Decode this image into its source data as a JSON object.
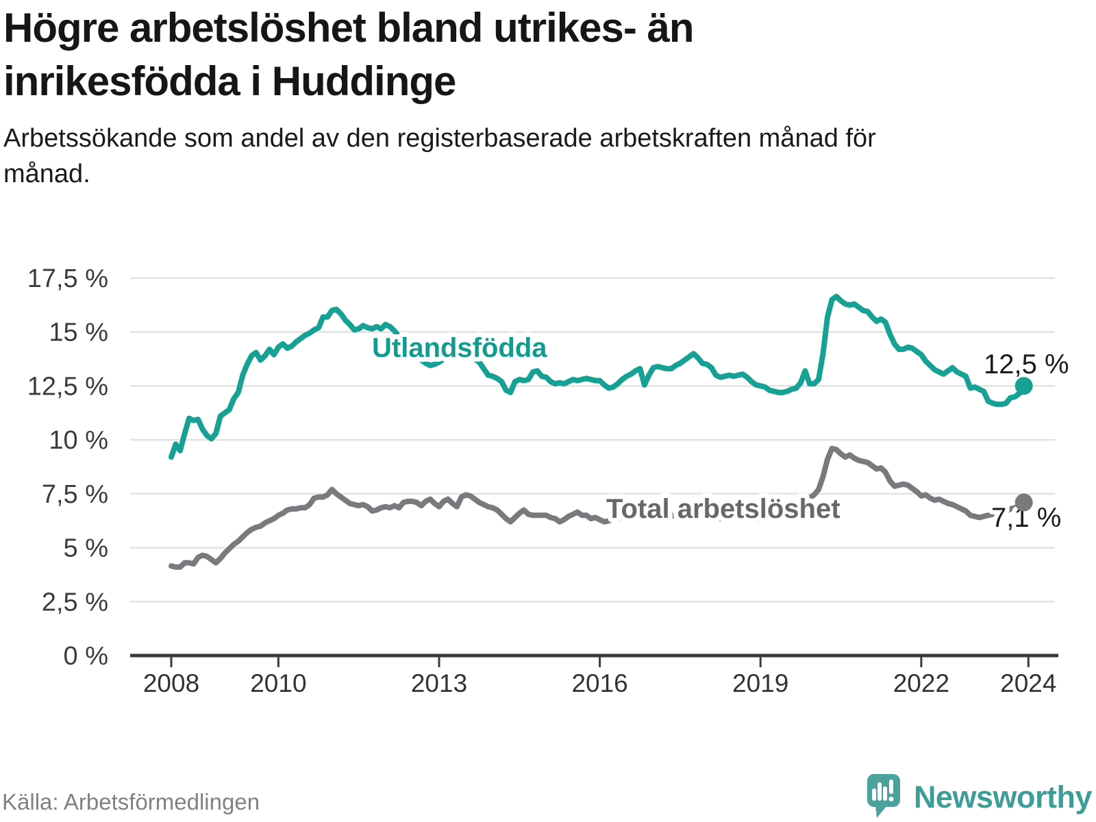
{
  "header": {
    "title": "Högre arbetslöshet bland utrikes- än inrikesfödda i Huddinge",
    "subtitle": "Arbetssökande som andel av den registerbaserade arbetskraften månad för månad."
  },
  "axis": {
    "y_unit": "%",
    "y_tick_labels": [
      "17,5 %",
      "15 %",
      "12,5 %",
      "10 %",
      "7,5 %",
      "5 %",
      "2,5 %",
      "0 %"
    ],
    "x_tick_labels": [
      "2008",
      "2010",
      "2013",
      "2016",
      "2019",
      "2022",
      "2024"
    ]
  },
  "colors": {
    "foreign_born_line": "#17a094",
    "total_line": "#7a7a7e",
    "grid": "#e2e2e2",
    "axis": "#3a3a3c",
    "text": "#161616",
    "muted": "#818181",
    "brand_teal": "#3f9d98"
  },
  "footer": {
    "source": "Källa: Arbetsförmedlingen",
    "brand": "Newsworthy",
    "brand_icon": "newsworthy-speech-bubble-bar-chart-logo"
  },
  "chart_data": {
    "type": "line",
    "title": "Högre arbetslöshet bland utrikes- än inrikesfödda i Huddinge",
    "xlabel": "",
    "ylabel": "Arbetssökande som andel av den registerbaserade arbetskraften",
    "x_start": "2008-01",
    "x_end": "2023-12",
    "frequency": "monthly",
    "ylim": [
      0,
      17.5
    ],
    "grid": "horizontal",
    "x_axis_years": [
      2008,
      2010,
      2013,
      2016,
      2019,
      2022,
      2024
    ],
    "series": [
      {
        "label": "Utlandsfödda",
        "color": "#17a094",
        "label_color": "#149b8f",
        "end_label": "12,5 %",
        "end_value": 12.5,
        "values": [
          9.2,
          9.8,
          9.5,
          10.3,
          11.0,
          10.9,
          10.95,
          10.5,
          10.2,
          10.05,
          10.3,
          11.1,
          11.25,
          11.4,
          11.9,
          12.2,
          13.0,
          13.5,
          13.9,
          14.05,
          13.7,
          13.9,
          14.2,
          13.95,
          14.3,
          14.45,
          14.25,
          14.35,
          14.55,
          14.7,
          14.85,
          14.95,
          15.1,
          15.2,
          15.7,
          15.7,
          16.0,
          16.05,
          15.85,
          15.55,
          15.35,
          15.1,
          15.15,
          15.3,
          15.2,
          15.15,
          15.25,
          15.15,
          15.35,
          15.25,
          15.05,
          14.8,
          14.55,
          14.3,
          14.1,
          13.9,
          13.7,
          13.55,
          13.45,
          13.5,
          13.6,
          13.75,
          13.85,
          13.9,
          13.85,
          13.9,
          14.0,
          13.9,
          13.75,
          13.6,
          13.3,
          13.0,
          12.95,
          12.85,
          12.7,
          12.3,
          12.2,
          12.7,
          12.8,
          12.75,
          12.8,
          13.15,
          13.2,
          12.95,
          12.9,
          12.7,
          12.6,
          12.65,
          12.6,
          12.7,
          12.8,
          12.75,
          12.8,
          12.85,
          12.8,
          12.75,
          12.75,
          12.55,
          12.4,
          12.45,
          12.6,
          12.8,
          12.95,
          13.05,
          13.2,
          13.3,
          12.55,
          13.0,
          13.35,
          13.4,
          13.35,
          13.3,
          13.3,
          13.45,
          13.55,
          13.7,
          13.85,
          14.0,
          13.8,
          13.55,
          13.5,
          13.35,
          13.0,
          12.9,
          12.95,
          13.0,
          12.95,
          13.0,
          13.05,
          12.9,
          12.7,
          12.55,
          12.5,
          12.45,
          12.3,
          12.25,
          12.2,
          12.2,
          12.25,
          12.35,
          12.4,
          12.65,
          13.2,
          12.6,
          12.6,
          12.8,
          14.0,
          15.7,
          16.5,
          16.65,
          16.45,
          16.3,
          16.25,
          16.3,
          16.15,
          16.0,
          15.95,
          15.7,
          15.5,
          15.6,
          15.45,
          14.9,
          14.45,
          14.2,
          14.2,
          14.3,
          14.25,
          14.1,
          13.95,
          13.65,
          13.45,
          13.25,
          13.15,
          13.05,
          13.2,
          13.35,
          13.15,
          13.05,
          12.95,
          12.4,
          12.45,
          12.35,
          12.25,
          11.8,
          11.7,
          11.65,
          11.65,
          11.7,
          11.95,
          12.0,
          12.15,
          12.5
        ]
      },
      {
        "label": "Total arbetslöshet",
        "color": "#7a7a7e",
        "label_color": "#67676c",
        "end_label": "7,1 %",
        "end_value": 7.1,
        "values": [
          4.15,
          4.1,
          4.1,
          4.3,
          4.3,
          4.25,
          4.55,
          4.65,
          4.6,
          4.45,
          4.3,
          4.5,
          4.75,
          4.95,
          5.15,
          5.3,
          5.5,
          5.7,
          5.85,
          5.95,
          6.0,
          6.15,
          6.25,
          6.35,
          6.5,
          6.6,
          6.75,
          6.8,
          6.8,
          6.85,
          6.85,
          7.0,
          7.3,
          7.35,
          7.35,
          7.45,
          7.7,
          7.5,
          7.35,
          7.2,
          7.05,
          7.0,
          6.95,
          7.0,
          6.9,
          6.7,
          6.75,
          6.85,
          6.9,
          6.85,
          6.95,
          6.85,
          7.1,
          7.15,
          7.15,
          7.1,
          6.95,
          7.15,
          7.25,
          7.05,
          6.9,
          7.15,
          7.25,
          7.05,
          6.9,
          7.35,
          7.45,
          7.4,
          7.25,
          7.1,
          7.0,
          6.9,
          6.85,
          6.75,
          6.55,
          6.35,
          6.2,
          6.4,
          6.6,
          6.75,
          6.55,
          6.5,
          6.5,
          6.5,
          6.5,
          6.4,
          6.35,
          6.2,
          6.3,
          6.45,
          6.55,
          6.65,
          6.5,
          6.5,
          6.35,
          6.4,
          6.3,
          6.2,
          6.25,
          6.3,
          6.35,
          6.4,
          6.5,
          6.55,
          6.5,
          6.45,
          6.35,
          6.4,
          6.45,
          6.5,
          6.55,
          6.5,
          6.45,
          6.55,
          6.65,
          6.75,
          6.8,
          6.85,
          6.75,
          6.65,
          6.6,
          6.5,
          6.4,
          6.35,
          6.4,
          6.45,
          6.4,
          6.45,
          6.5,
          6.4,
          6.35,
          6.3,
          6.35,
          6.4,
          6.45,
          6.5,
          6.55,
          6.6,
          6.65,
          6.7,
          6.8,
          6.9,
          7.1,
          7.3,
          7.45,
          7.7,
          8.3,
          9.1,
          9.6,
          9.55,
          9.35,
          9.2,
          9.3,
          9.15,
          9.05,
          9.0,
          8.95,
          8.8,
          8.65,
          8.7,
          8.5,
          8.1,
          7.85,
          7.9,
          7.95,
          7.9,
          7.75,
          7.6,
          7.4,
          7.45,
          7.3,
          7.2,
          7.25,
          7.15,
          7.05,
          7.0,
          6.9,
          6.8,
          6.7,
          6.5,
          6.45,
          6.4,
          6.45,
          6.5,
          6.55,
          6.6,
          6.65,
          6.7,
          6.8,
          6.85,
          6.95,
          7.1
        ]
      }
    ]
  }
}
